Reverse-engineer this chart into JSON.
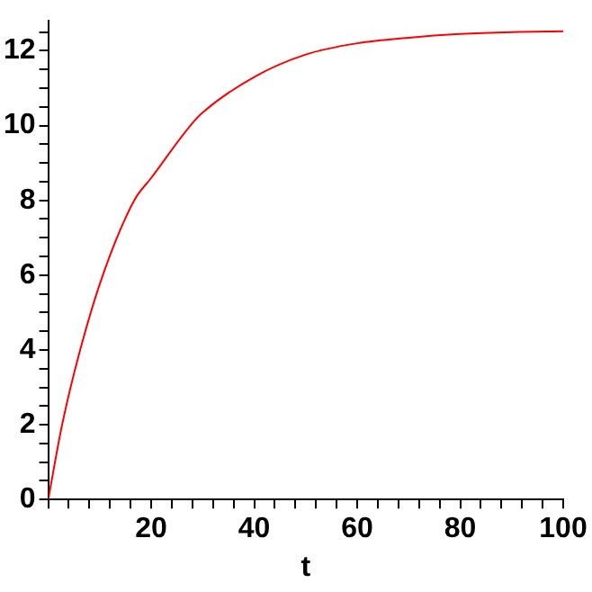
{
  "chart_data": {
    "type": "line",
    "xlabel": "t",
    "xlim": [
      0,
      100
    ],
    "ylim": [
      0,
      12.8
    ],
    "x": [
      0,
      2.7,
      6.2,
      10.6,
      16.7,
      20,
      27.6,
      30,
      40,
      50,
      60,
      70,
      80,
      90,
      100
    ],
    "series": [
      {
        "color": "#ff0000",
        "values": [
          0,
          2,
          4,
          6,
          8,
          8.6,
          10,
          10.35,
          11.3,
          11.9,
          12.2,
          12.35,
          12.45,
          12.5,
          12.52
        ]
      }
    ],
    "xticks": [
      {
        "value": 0,
        "label": null
      },
      {
        "value": 4,
        "label": null
      },
      {
        "value": 8,
        "label": null
      },
      {
        "value": 12,
        "label": null
      },
      {
        "value": 16,
        "label": null
      },
      20,
      {
        "value": 24,
        "label": null
      },
      {
        "value": 28,
        "label": null
      },
      {
        "value": 32,
        "label": null
      },
      {
        "value": 36,
        "label": null
      },
      40,
      {
        "value": 44,
        "label": null
      },
      {
        "value": 48,
        "label": null
      },
      {
        "value": 52,
        "label": null
      },
      {
        "value": 56,
        "label": null
      },
      60,
      {
        "value": 64,
        "label": null
      },
      {
        "value": 68,
        "label": null
      },
      {
        "value": 72,
        "label": null
      },
      {
        "value": 76,
        "label": null
      },
      80,
      {
        "value": 84,
        "label": null
      },
      {
        "value": 88,
        "label": null
      },
      {
        "value": 92,
        "label": null
      },
      {
        "value": 96,
        "label": null
      },
      100
    ],
    "yticks": [
      0,
      {
        "value": 0.5,
        "label": null
      },
      {
        "value": 1,
        "label": null
      },
      {
        "value": 1.5,
        "label": null
      },
      2,
      {
        "value": 2.5,
        "label": null
      },
      {
        "value": 3,
        "label": null
      },
      {
        "value": 3.5,
        "label": null
      },
      4,
      {
        "value": 4.5,
        "label": null
      },
      {
        "value": 5,
        "label": null
      },
      {
        "value": 5.5,
        "label": null
      },
      6,
      {
        "value": 6.5,
        "label": null
      },
      {
        "value": 7,
        "label": null
      },
      {
        "value": 7.5,
        "label": null
      },
      8,
      {
        "value": 8.5,
        "label": null
      },
      {
        "value": 9,
        "label": null
      },
      {
        "value": 9.5,
        "label": null
      },
      10,
      {
        "value": 10.5,
        "label": null
      },
      {
        "value": 11,
        "label": null
      },
      {
        "value": 11.5,
        "label": null
      },
      12,
      {
        "value": 12.5,
        "label": null
      }
    ],
    "grid": false,
    "legend": false,
    "marker": "none",
    "line_style": "solid"
  }
}
